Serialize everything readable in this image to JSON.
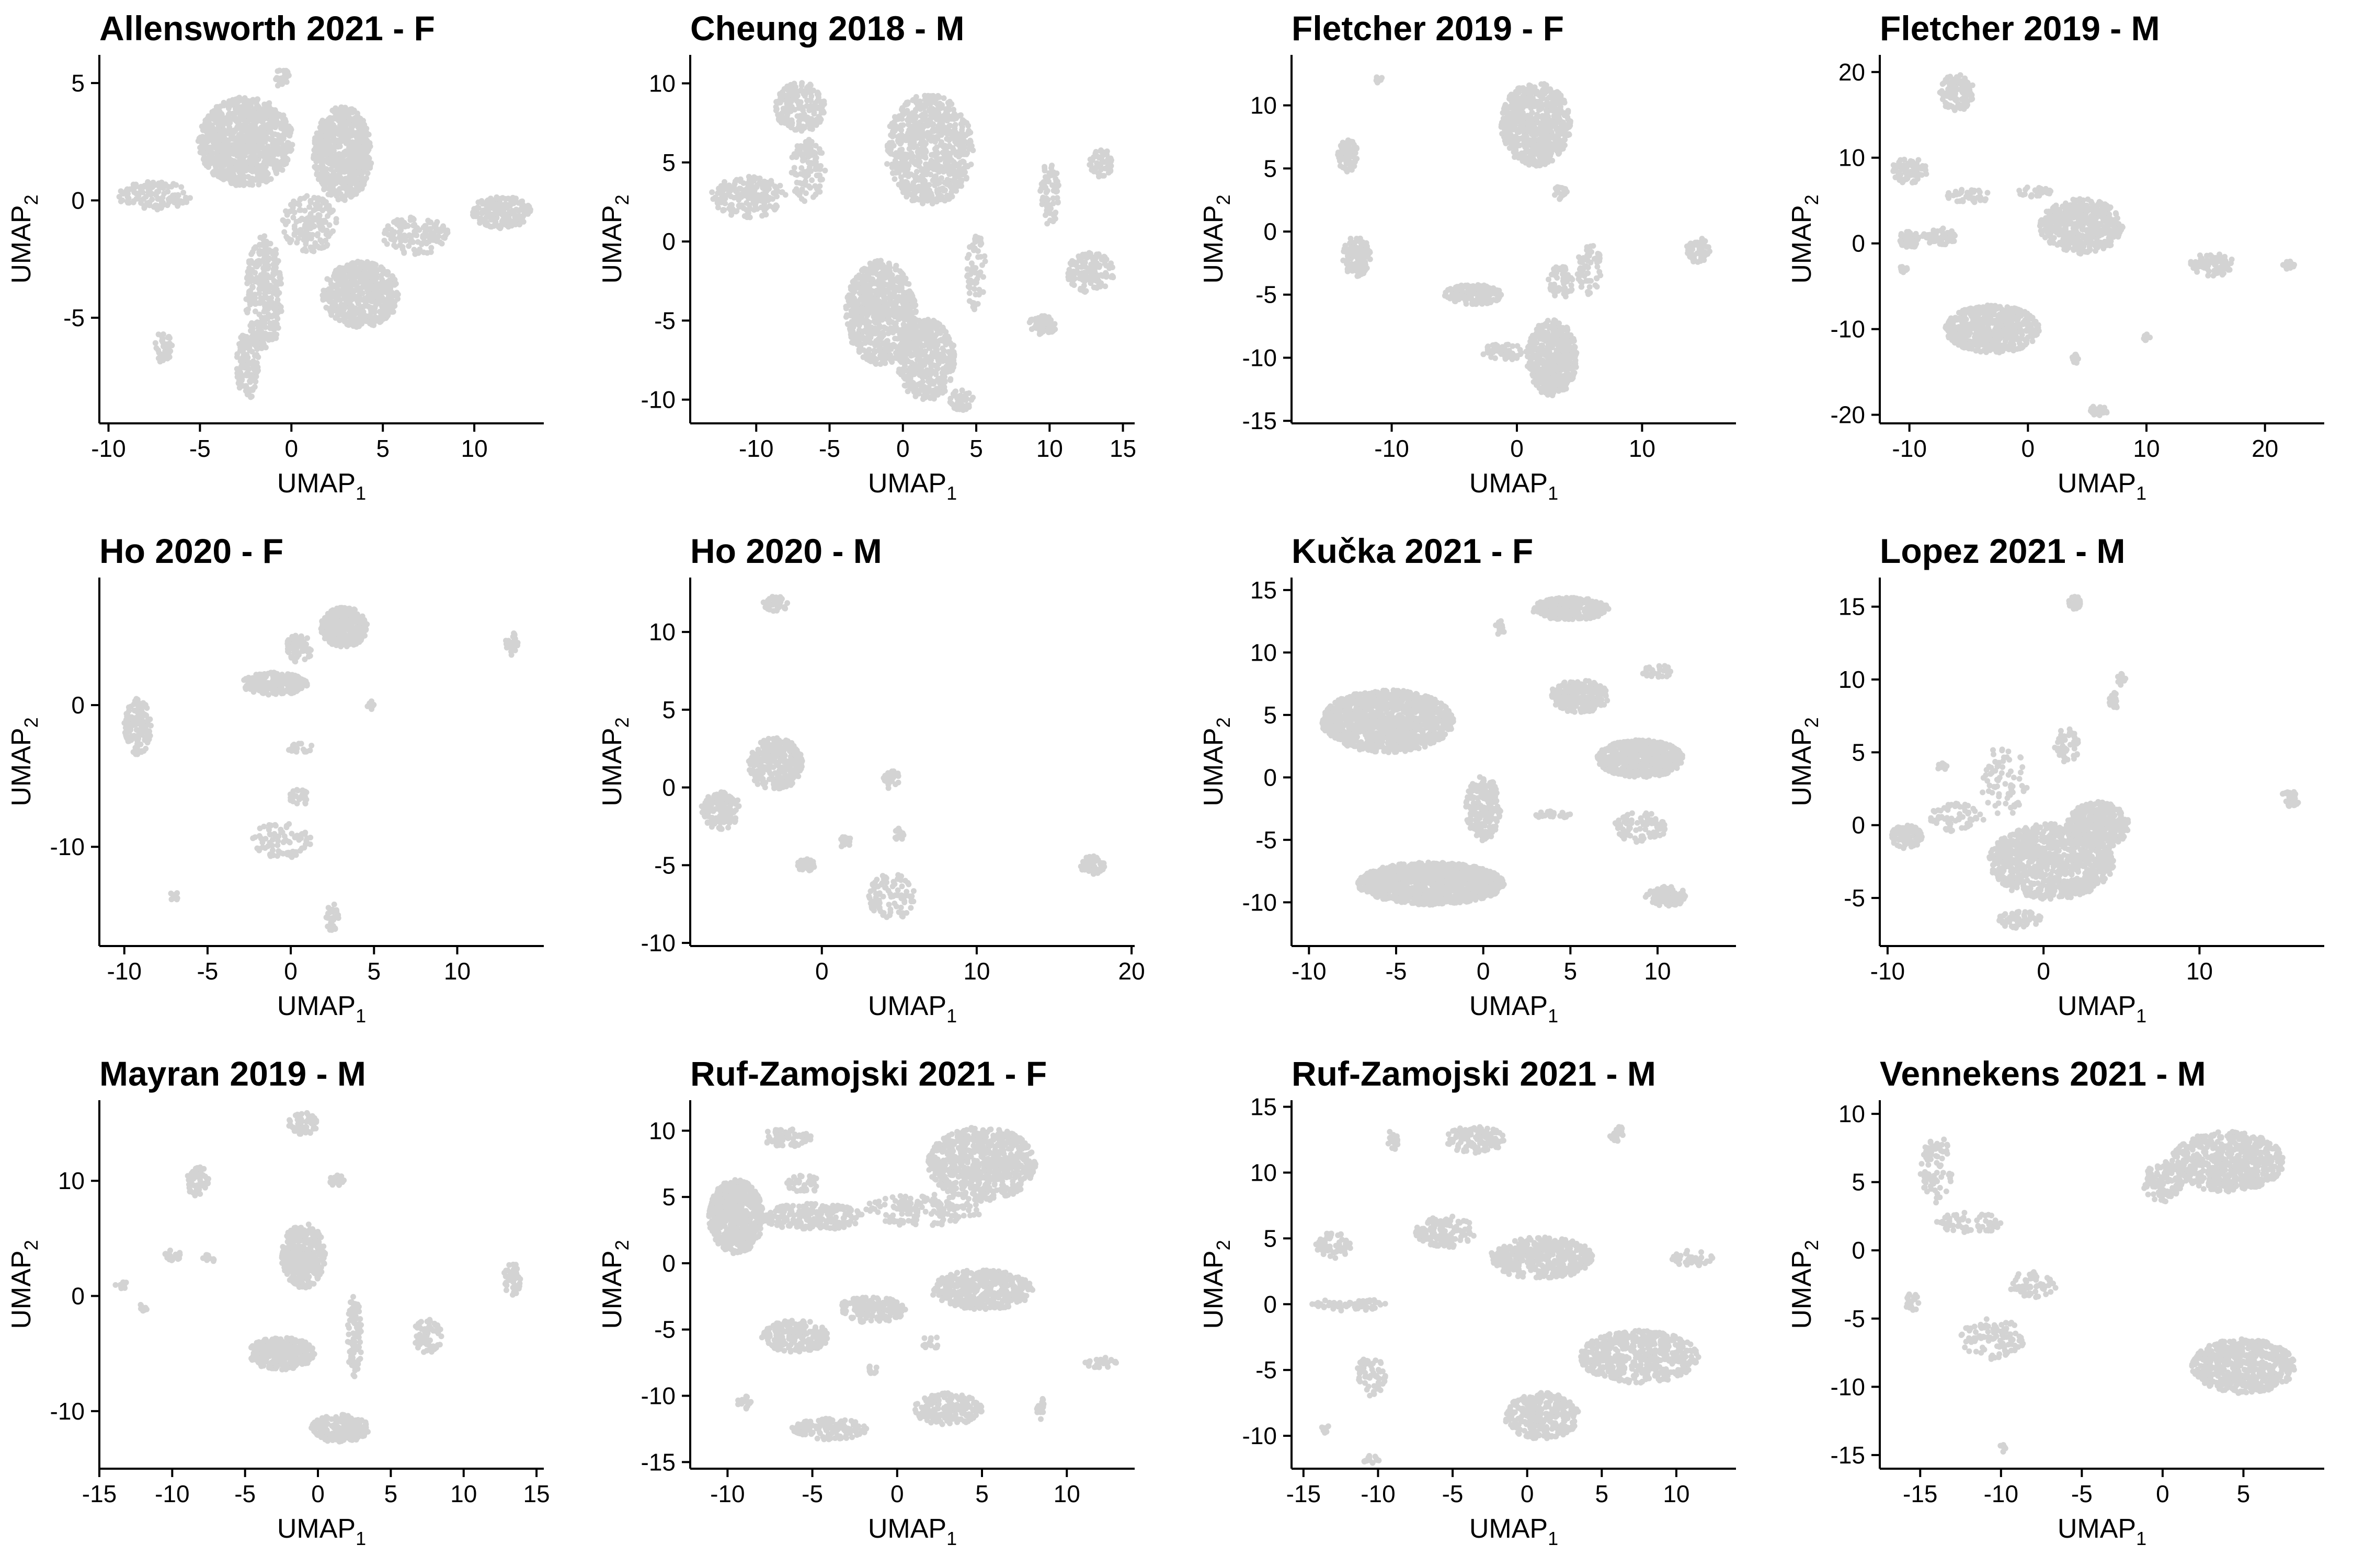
{
  "colors": {
    "points": "#d3d3d3",
    "axis": "#000000",
    "background": "#ffffff"
  },
  "axis_labels": {
    "x_main": "UMAP",
    "x_sub": "1",
    "y_main": "UMAP",
    "y_sub": "2"
  },
  "chart_data": [
    {
      "type": "scatter",
      "title": "Allensworth 2021 - F",
      "xticks": [
        -10,
        -5,
        0,
        5,
        10
      ],
      "yticks": [
        -5,
        0,
        5
      ],
      "xlim": [
        -10.5,
        13.8
      ],
      "ylim": [
        -9.5,
        6.2
      ],
      "clusters": [
        [
          -2.5,
          2.5,
          2.6,
          1.9,
          950
        ],
        [
          2.8,
          2.0,
          1.6,
          2.0,
          600
        ],
        [
          3.8,
          -4.0,
          2.1,
          1.4,
          550
        ],
        [
          -1.5,
          -4.0,
          1.0,
          2.5,
          280
        ],
        [
          -2.4,
          -7.0,
          0.6,
          1.5,
          110
        ],
        [
          11.5,
          -0.5,
          1.6,
          0.7,
          180
        ],
        [
          6.8,
          -1.5,
          1.8,
          0.8,
          140
        ],
        [
          -7.5,
          0.2,
          2.0,
          0.6,
          120
        ],
        [
          -7.0,
          -6.3,
          0.5,
          0.7,
          40
        ],
        [
          1.0,
          -1.0,
          1.5,
          1.2,
          140
        ],
        [
          -0.5,
          5.2,
          0.4,
          0.4,
          25
        ]
      ]
    },
    {
      "type": "scatter",
      "title": "Cheung 2018 - M",
      "xticks": [
        -10,
        -5,
        0,
        5,
        10,
        15
      ],
      "yticks": [
        -10,
        -5,
        0,
        5,
        10
      ],
      "xlim": [
        -14.5,
        15.8
      ],
      "ylim": [
        -11.5,
        11.8
      ],
      "clusters": [
        [
          1.8,
          5.8,
          3.0,
          3.5,
          700
        ],
        [
          -1.5,
          -4.5,
          2.4,
          3.3,
          700
        ],
        [
          1.6,
          -7.5,
          2.0,
          2.6,
          400
        ],
        [
          -10.5,
          2.8,
          2.6,
          1.3,
          180
        ],
        [
          -7.0,
          8.5,
          1.7,
          1.6,
          180
        ],
        [
          -6.5,
          4.5,
          1.2,
          2.0,
          100
        ],
        [
          12.8,
          -2.0,
          1.6,
          1.3,
          130
        ],
        [
          10.0,
          3.0,
          0.7,
          2.0,
          70
        ],
        [
          13.5,
          5.0,
          0.8,
          1.0,
          50
        ],
        [
          9.5,
          -5.3,
          1.0,
          0.6,
          60
        ],
        [
          5.0,
          -2.0,
          0.7,
          2.5,
          60
        ],
        [
          4.0,
          -10.0,
          0.8,
          0.7,
          40
        ]
      ]
    },
    {
      "type": "scatter",
      "title": "Fletcher 2019 - F",
      "xticks": [
        -10,
        0,
        10
      ],
      "yticks": [
        -15,
        -10,
        -5,
        0,
        5,
        10
      ],
      "xlim": [
        -18,
        17.5
      ],
      "ylim": [
        -15.2,
        14
      ],
      "clusters": [
        [
          1.5,
          8.5,
          2.8,
          3.3,
          600
        ],
        [
          2.8,
          -10.0,
          2.0,
          3.0,
          450
        ],
        [
          -3.5,
          -5.0,
          2.3,
          0.8,
          160
        ],
        [
          -12.8,
          -2.0,
          1.1,
          1.6,
          120
        ],
        [
          -13.5,
          6.0,
          0.8,
          1.3,
          70
        ],
        [
          5.8,
          -3.0,
          1.0,
          2.0,
          60
        ],
        [
          14.5,
          -1.5,
          1.0,
          1.0,
          60
        ],
        [
          -1.0,
          -9.5,
          1.8,
          0.8,
          50
        ],
        [
          3.5,
          -4.0,
          1.0,
          1.3,
          50
        ],
        [
          -11.0,
          12.0,
          0.3,
          0.3,
          8
        ],
        [
          3.5,
          3.0,
          0.6,
          0.6,
          20
        ]
      ]
    },
    {
      "type": "scatter",
      "title": "Fletcher 2019 - M",
      "xticks": [
        -10,
        0,
        10,
        20
      ],
      "yticks": [
        -20,
        -10,
        0,
        10,
        20
      ],
      "xlim": [
        -12.5,
        25
      ],
      "ylim": [
        -21,
        22
      ],
      "clusters": [
        [
          4.5,
          2.0,
          3.5,
          3.2,
          450
        ],
        [
          -3.0,
          -10.0,
          4.0,
          2.8,
          550
        ],
        [
          -6.0,
          17.5,
          1.5,
          2.2,
          120
        ],
        [
          -10.0,
          8.5,
          1.5,
          1.5,
          80
        ],
        [
          -10.0,
          0.5,
          1.0,
          1.0,
          50
        ],
        [
          -7.5,
          0.8,
          1.5,
          1.0,
          50
        ],
        [
          15.5,
          -2.5,
          2.0,
          1.3,
          80
        ],
        [
          22.0,
          -2.5,
          0.5,
          0.5,
          20
        ],
        [
          -5.0,
          5.5,
          2.0,
          0.8,
          40
        ],
        [
          6.0,
          -19.5,
          0.8,
          0.6,
          30
        ],
        [
          4.0,
          -13.5,
          0.3,
          0.6,
          15
        ],
        [
          10.0,
          -11.0,
          0.3,
          0.4,
          10
        ],
        [
          -10.5,
          -3.0,
          0.3,
          0.4,
          10
        ],
        [
          0.5,
          6.0,
          1.5,
          0.6,
          25
        ]
      ]
    },
    {
      "type": "scatter",
      "title": "Ho 2020 - F",
      "xticks": [
        -10,
        -5,
        0,
        5,
        10
      ],
      "yticks": [
        -10,
        0
      ],
      "xlim": [
        -11.5,
        15.2
      ],
      "ylim": [
        -17,
        9
      ],
      "clusters": [
        [
          3.2,
          5.5,
          1.4,
          1.4,
          320
        ],
        [
          -1.0,
          1.5,
          2.0,
          0.8,
          200
        ],
        [
          0.5,
          4.0,
          0.8,
          1.0,
          60
        ],
        [
          -9.2,
          -1.5,
          0.8,
          2.0,
          120
        ],
        [
          -0.5,
          -9.5,
          1.8,
          1.3,
          80
        ],
        [
          0.5,
          -6.5,
          0.6,
          0.6,
          25
        ],
        [
          2.5,
          -15.0,
          0.4,
          1.0,
          30
        ],
        [
          13.3,
          4.3,
          0.4,
          0.8,
          30
        ],
        [
          4.8,
          0.0,
          0.2,
          0.3,
          8
        ],
        [
          -7.0,
          -13.5,
          0.3,
          0.3,
          8
        ],
        [
          0.5,
          -3.0,
          0.8,
          0.4,
          20
        ]
      ]
    },
    {
      "type": "scatter",
      "title": "Ho 2020 - M",
      "xticks": [
        0,
        10,
        20
      ],
      "yticks": [
        -10,
        -5,
        0,
        5,
        10
      ],
      "xlim": [
        -8.5,
        20.2
      ],
      "ylim": [
        -10.2,
        13.5
      ],
      "clusters": [
        [
          -3.0,
          1.5,
          1.8,
          1.7,
          300
        ],
        [
          -6.5,
          -1.5,
          1.3,
          1.2,
          150
        ],
        [
          4.5,
          -7.0,
          1.5,
          1.5,
          90
        ],
        [
          17.5,
          -5.0,
          0.8,
          0.6,
          60
        ],
        [
          -3.0,
          11.8,
          0.8,
          0.5,
          40
        ],
        [
          4.5,
          0.5,
          0.6,
          0.6,
          25
        ],
        [
          5.0,
          -3.0,
          0.4,
          0.4,
          15
        ],
        [
          -1.0,
          -5.0,
          0.6,
          0.4,
          30
        ],
        [
          1.5,
          -3.5,
          0.4,
          0.4,
          15
        ]
      ]
    },
    {
      "type": "scatter",
      "title": "Kučka 2021 - F",
      "xticks": [
        -10,
        -5,
        0,
        5,
        10
      ],
      "yticks": [
        -10,
        -5,
        0,
        5,
        10,
        15
      ],
      "xlim": [
        -11,
        14.5
      ],
      "ylim": [
        -13.5,
        16
      ],
      "clusters": [
        [
          -5.5,
          4.5,
          3.8,
          2.5,
          1200
        ],
        [
          -3.0,
          -8.5,
          4.2,
          1.7,
          1200
        ],
        [
          0.0,
          -2.5,
          1.0,
          2.6,
          200
        ],
        [
          9.0,
          1.5,
          2.5,
          1.5,
          600
        ],
        [
          5.5,
          6.5,
          1.7,
          1.3,
          250
        ],
        [
          5.0,
          13.5,
          2.2,
          0.9,
          250
        ],
        [
          10.5,
          -9.5,
          1.2,
          0.8,
          90
        ],
        [
          9.0,
          -4.0,
          1.5,
          1.2,
          90
        ],
        [
          4.0,
          -3.0,
          1.0,
          0.3,
          30
        ],
        [
          1.0,
          12.0,
          0.3,
          0.6,
          15
        ],
        [
          10.0,
          8.5,
          1.0,
          0.5,
          30
        ]
      ]
    },
    {
      "type": "scatter",
      "title": "Lopez 2021 - M",
      "xticks": [
        -10,
        0,
        10
      ],
      "yticks": [
        -5,
        0,
        5,
        10,
        15
      ],
      "xlim": [
        -10.5,
        18
      ],
      "ylim": [
        -8.3,
        17
      ],
      "clusters": [
        [
          0.5,
          -2.5,
          4.0,
          2.6,
          900
        ],
        [
          3.5,
          0.0,
          2.0,
          1.6,
          350
        ],
        [
          -8.8,
          -0.8,
          1.0,
          0.8,
          90
        ],
        [
          -5.5,
          0.5,
          1.8,
          1.0,
          60
        ],
        [
          -2.5,
          3.0,
          1.5,
          2.5,
          70
        ],
        [
          1.5,
          5.5,
          0.8,
          1.2,
          50
        ],
        [
          2.0,
          15.3,
          0.4,
          0.5,
          25
        ],
        [
          4.5,
          8.5,
          0.3,
          0.6,
          20
        ],
        [
          5.0,
          10.0,
          0.3,
          0.4,
          15
        ],
        [
          15.8,
          1.8,
          0.6,
          0.6,
          30
        ],
        [
          -1.5,
          -6.5,
          1.5,
          0.6,
          60
        ],
        [
          -6.5,
          4.0,
          0.3,
          0.3,
          8
        ]
      ]
    },
    {
      "type": "scatter",
      "title": "Mayran 2019 - M",
      "xticks": [
        -15,
        -10,
        -5,
        0,
        5,
        10,
        15
      ],
      "yticks": [
        -10,
        0,
        10
      ],
      "xlim": [
        -15,
        15.5
      ],
      "ylim": [
        -15,
        17
      ],
      "clusters": [
        [
          -1.0,
          3.5,
          1.5,
          2.8,
          350
        ],
        [
          -2.5,
          -5.0,
          2.3,
          1.4,
          300
        ],
        [
          1.5,
          -11.5,
          2.0,
          1.2,
          200
        ],
        [
          2.5,
          -3.5,
          0.5,
          3.5,
          80
        ],
        [
          -1.0,
          15.0,
          1.0,
          1.0,
          50
        ],
        [
          1.3,
          10.0,
          0.5,
          0.5,
          25
        ],
        [
          -8.3,
          10.0,
          0.8,
          1.3,
          50
        ],
        [
          -10.0,
          3.5,
          0.6,
          0.5,
          20
        ],
        [
          13.3,
          1.5,
          0.6,
          1.5,
          50
        ],
        [
          7.5,
          -3.5,
          1.0,
          1.5,
          60
        ],
        [
          -13.5,
          1.0,
          0.4,
          0.4,
          10
        ],
        [
          -12.0,
          -1.0,
          0.3,
          0.3,
          8
        ],
        [
          -7.5,
          3.2,
          0.4,
          0.4,
          12
        ]
      ]
    },
    {
      "type": "scatter",
      "title": "Ruf-Zamojski 2021 - F",
      "xticks": [
        -10,
        -5,
        0,
        5,
        10
      ],
      "yticks": [
        -15,
        -10,
        -5,
        0,
        5,
        10
      ],
      "xlim": [
        -12.2,
        14
      ],
      "ylim": [
        -15.5,
        12.3
      ],
      "clusters": [
        [
          -9.5,
          3.5,
          1.6,
          2.8,
          600
        ],
        [
          5.0,
          7.5,
          3.2,
          2.8,
          700
        ],
        [
          -5.0,
          3.5,
          3.0,
          1.0,
          200
        ],
        [
          1.5,
          4.0,
          3.5,
          1.2,
          150
        ],
        [
          5.0,
          -2.0,
          3.0,
          1.5,
          400
        ],
        [
          -6.0,
          -5.5,
          2.0,
          1.2,
          200
        ],
        [
          3.0,
          -11.0,
          2.0,
          1.2,
          180
        ],
        [
          -1.5,
          -3.5,
          2.0,
          1.0,
          150
        ],
        [
          -4.0,
          -12.5,
          2.2,
          0.8,
          120
        ],
        [
          -6.5,
          9.5,
          1.5,
          0.7,
          60
        ],
        [
          -5.5,
          6.0,
          1.0,
          0.7,
          40
        ],
        [
          12.0,
          -7.5,
          1.0,
          0.4,
          30
        ],
        [
          8.5,
          -11.0,
          0.3,
          0.8,
          20
        ],
        [
          -9.0,
          -10.5,
          0.4,
          0.5,
          15
        ],
        [
          2.0,
          -6.0,
          0.6,
          0.5,
          15
        ],
        [
          -1.5,
          -8.0,
          0.3,
          0.4,
          10
        ]
      ]
    },
    {
      "type": "scatter",
      "title": "Ruf-Zamojski 2021 - M",
      "xticks": [
        -15,
        -10,
        -5,
        0,
        5,
        10
      ],
      "yticks": [
        -10,
        -5,
        0,
        5,
        10,
        15
      ],
      "xlim": [
        -15.8,
        14
      ],
      "ylim": [
        -12.5,
        15.5
      ],
      "clusters": [
        [
          1.0,
          3.5,
          3.5,
          1.6,
          400
        ],
        [
          7.5,
          -4.0,
          4.0,
          2.0,
          500
        ],
        [
          1.0,
          -8.5,
          2.5,
          1.8,
          300
        ],
        [
          -5.5,
          5.5,
          2.0,
          1.2,
          120
        ],
        [
          -13.0,
          4.5,
          1.2,
          1.0,
          60
        ],
        [
          -12.0,
          0.0,
          2.5,
          0.5,
          60
        ],
        [
          -10.5,
          -5.5,
          1.0,
          1.5,
          60
        ],
        [
          -3.5,
          12.5,
          2.0,
          1.0,
          120
        ],
        [
          6.0,
          13.0,
          0.5,
          0.6,
          20
        ],
        [
          -9.0,
          12.5,
          0.4,
          0.8,
          20
        ],
        [
          11.0,
          3.5,
          1.5,
          0.6,
          40
        ],
        [
          -10.5,
          -11.8,
          0.6,
          0.3,
          15
        ],
        [
          -13.5,
          -9.5,
          0.3,
          0.3,
          8
        ]
      ]
    },
    {
      "type": "scatter",
      "title": "Vennekens 2021 - M",
      "xticks": [
        -15,
        -10,
        -5,
        0,
        5
      ],
      "yticks": [
        -15,
        -10,
        -5,
        0,
        5,
        10
      ],
      "xlim": [
        -17.5,
        10
      ],
      "ylim": [
        -16,
        11
      ],
      "clusters": [
        [
          4.0,
          6.5,
          3.5,
          2.2,
          600
        ],
        [
          5.0,
          -8.5,
          3.2,
          2.0,
          550
        ],
        [
          0.0,
          5.0,
          1.2,
          1.5,
          100
        ],
        [
          -14.0,
          6.0,
          1.0,
          2.5,
          80
        ],
        [
          -12.0,
          2.0,
          2.0,
          0.8,
          60
        ],
        [
          -10.5,
          -6.5,
          2.0,
          1.5,
          100
        ],
        [
          -8.0,
          -2.5,
          1.5,
          1.0,
          60
        ],
        [
          -15.5,
          -3.8,
          0.4,
          0.8,
          20
        ],
        [
          -10.0,
          -14.5,
          0.3,
          0.3,
          8
        ]
      ]
    }
  ]
}
